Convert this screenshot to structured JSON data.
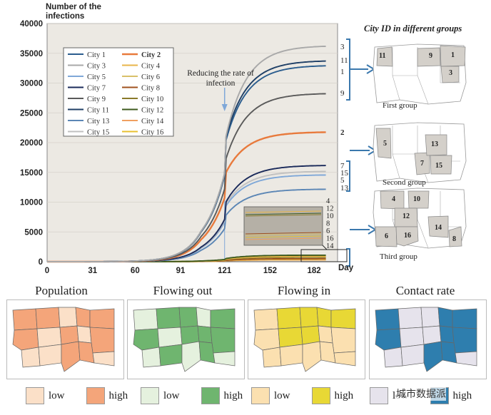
{
  "chart_data": {
    "type": "line",
    "ylabel": "Number of the infections",
    "xlabel": "Day",
    "xlim": [
      0,
      198
    ],
    "ylim": [
      0,
      40000
    ],
    "xticks": [
      0,
      31,
      60,
      91,
      121,
      152,
      182
    ],
    "yticks": [
      0,
      5000,
      10000,
      15000,
      20000,
      25000,
      30000,
      35000,
      40000
    ],
    "annotation": "Reducing the rate of infection",
    "intervention_day": 121,
    "series": [
      {
        "name": "City 1",
        "id": "1",
        "color": "#2b5d8e",
        "final": 33000,
        "at121": 19500
      },
      {
        "name": "City 2",
        "id": "2",
        "color": "#e87a3c",
        "final": 21800,
        "at121": 14500
      },
      {
        "name": "City 3",
        "id": "3",
        "color": "#a9a9a9",
        "final": 36300,
        "at121": 20000
      },
      {
        "name": "City 4",
        "id": "4",
        "color": "#e8b64a",
        "final": 900,
        "at121": 400
      },
      {
        "name": "City 5",
        "id": "5",
        "color": "#7fa8d8",
        "final": 14600,
        "at121": 9000
      },
      {
        "name": "City 6",
        "id": "6",
        "color": "#d9c06a",
        "final": 450,
        "at121": 200
      },
      {
        "name": "City 7",
        "id": "7",
        "color": "#1a2a5a",
        "final": 16200,
        "at121": 9600
      },
      {
        "name": "City 8",
        "id": "8",
        "color": "#a0521d",
        "final": 500,
        "at121": 220
      },
      {
        "name": "City 9",
        "id": "9",
        "color": "#5a5a5a",
        "final": 28300,
        "at121": 16500
      },
      {
        "name": "City 10",
        "id": "10",
        "color": "#8a7a2a",
        "final": 750,
        "at121": 350
      },
      {
        "name": "City 11",
        "id": "11",
        "color": "#1f3f66",
        "final": 33800,
        "at121": 20000
      },
      {
        "name": "City 12",
        "id": "12",
        "color": "#3d5a1e",
        "final": 1100,
        "at121": 500
      },
      {
        "name": "City 13",
        "id": "13",
        "color": "#5b86b5",
        "final": 12200,
        "at121": 7500
      },
      {
        "name": "City 14",
        "id": "14",
        "color": "#f0a060",
        "final": 300,
        "at121": 150
      },
      {
        "name": "City 15",
        "id": "15",
        "color": "#c0c0c0",
        "final": 15200,
        "at121": 9300
      },
      {
        "name": "City 16",
        "id": "16",
        "color": "#e8c030",
        "final": 380,
        "at121": 180
      }
    ],
    "end_labels_high": [
      "3",
      "11",
      "1",
      "9",
      "2",
      "7",
      "15",
      "5",
      "13"
    ],
    "inset_labels": [
      "4",
      "12",
      "10",
      "8",
      "6",
      "16",
      "14"
    ]
  },
  "groups": {
    "title": "City ID in different groups",
    "first": {
      "label": "First group",
      "ids": [
        "11",
        "9",
        "1",
        "3"
      ]
    },
    "second": {
      "label": "Second group",
      "ids": [
        "5",
        "13",
        "7",
        "15"
      ]
    },
    "third": {
      "label": "Third group",
      "ids": [
        "4",
        "10",
        "12",
        "6",
        "16",
        "14",
        "8"
      ]
    }
  },
  "maps": [
    {
      "title": "Population",
      "low": "low",
      "high": "high",
      "low_color": "#fbe0c8",
      "high_color": "#f4a57a"
    },
    {
      "title": "Flowing out",
      "low": "low",
      "high": "high",
      "low_color": "#e5f1de",
      "high_color": "#6fb56f"
    },
    {
      "title": "Flowing in",
      "low": "low",
      "high": "high",
      "low_color": "#fbe0b0",
      "high_color": "#e8d835"
    },
    {
      "title": "Contact rate",
      "low": "low",
      "high": "high",
      "low_color": "#e6e3ec",
      "high_color": "#2e7eae"
    }
  ],
  "watermark": "城市数据派"
}
